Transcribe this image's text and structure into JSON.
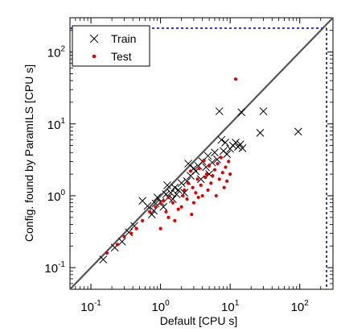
{
  "chart_data": {
    "type": "scatter",
    "xlabel": "Default [CPU s]",
    "ylabel": "Config. found by ParamILS [CPU s]",
    "x_scale": "log",
    "y_scale": "log",
    "xlim": [
      0.05,
      300
    ],
    "ylim": [
      0.05,
      300
    ],
    "x_ticks": [
      {
        "value": 0.1,
        "base": "10",
        "exp": "-1"
      },
      {
        "value": 1,
        "base": "10",
        "exp": "0"
      },
      {
        "value": 10,
        "base": "10",
        "exp": "1"
      },
      {
        "value": 100,
        "base": "10",
        "exp": "2"
      }
    ],
    "y_ticks": [
      {
        "value": 0.1,
        "base": "10",
        "exp": "-1"
      },
      {
        "value": 1,
        "base": "10",
        "exp": "0"
      },
      {
        "value": 10,
        "base": "10",
        "exp": "1"
      },
      {
        "value": 100,
        "base": "10",
        "exp": "2"
      }
    ],
    "grid": false,
    "legend_position": "top-left",
    "colors": {
      "train": "#000000",
      "test": "#e00000",
      "diagonal": "#555555",
      "cutoff": "#3333ff",
      "background": "#ffffff"
    },
    "reference_lines": [
      {
        "type": "diagonal",
        "style": "solid",
        "description": "y = x"
      },
      {
        "type": "cutoff",
        "style": "dotted",
        "x": 300,
        "y": 300
      }
    ],
    "series": [
      {
        "name": "Train",
        "marker": "x",
        "points": [
          [
            0.15,
            0.13
          ],
          [
            0.22,
            0.19
          ],
          [
            0.28,
            0.23
          ],
          [
            0.35,
            0.31
          ],
          [
            0.42,
            0.38
          ],
          [
            0.55,
            0.85
          ],
          [
            0.65,
            0.72
          ],
          [
            0.75,
            0.55
          ],
          [
            0.8,
            0.62
          ],
          [
            0.85,
            0.78
          ],
          [
            0.9,
            0.95
          ],
          [
            1.0,
            0.82
          ],
          [
            1.1,
            0.7
          ],
          [
            1.2,
            1.05
          ],
          [
            1.25,
            1.4
          ],
          [
            1.3,
            0.95
          ],
          [
            1.4,
            1.1
          ],
          [
            1.5,
            0.9
          ],
          [
            1.6,
            1.3
          ],
          [
            1.7,
            1.05
          ],
          [
            1.8,
            1.2
          ],
          [
            2.0,
            1.5
          ],
          [
            2.2,
            1.1
          ],
          [
            2.4,
            1.6
          ],
          [
            2.5,
            2.8
          ],
          [
            2.7,
            1.9
          ],
          [
            3.0,
            2.4
          ],
          [
            3.2,
            2.2
          ],
          [
            3.5,
            2.6
          ],
          [
            3.8,
            1.7
          ],
          [
            4.0,
            3.0
          ],
          [
            4.5,
            2.5
          ],
          [
            4.8,
            3.6
          ],
          [
            5.0,
            2.0
          ],
          [
            5.5,
            2.9
          ],
          [
            6.0,
            4.0
          ],
          [
            6.5,
            3.2
          ],
          [
            7.0,
            15.0
          ],
          [
            7.5,
            6.0
          ],
          [
            8.0,
            4.2
          ],
          [
            8.5,
            5.5
          ],
          [
            9.0,
            3.8
          ],
          [
            10.0,
            4.5
          ],
          [
            11.0,
            5.0
          ],
          [
            12.0,
            5.5
          ],
          [
            13.0,
            4.8
          ],
          [
            14.0,
            5.2
          ],
          [
            14.5,
            14.5
          ],
          [
            15.0,
            4.6
          ],
          [
            27.0,
            7.5
          ],
          [
            30.0,
            15.0
          ],
          [
            95.0,
            7.8
          ]
        ]
      },
      {
        "name": "Test",
        "marker": "dot",
        "points": [
          [
            0.17,
            0.16
          ],
          [
            0.24,
            0.21
          ],
          [
            0.3,
            0.27
          ],
          [
            0.38,
            0.3
          ],
          [
            0.45,
            0.35
          ],
          [
            0.55,
            0.45
          ],
          [
            0.85,
            0.7
          ],
          [
            1.0,
            0.78
          ],
          [
            1.1,
            0.85
          ],
          [
            1.2,
            0.6
          ],
          [
            1.3,
            0.95
          ],
          [
            1.5,
            0.8
          ],
          [
            1.6,
            0.45
          ],
          [
            1.8,
            0.65
          ],
          [
            2.0,
            0.7
          ],
          [
            2.1,
            1.0
          ],
          [
            2.2,
            1.2
          ],
          [
            2.4,
            0.9
          ],
          [
            2.5,
            1.5
          ],
          [
            2.7,
            2.2
          ],
          [
            2.9,
            1.3
          ],
          [
            3.0,
            0.8
          ],
          [
            3.2,
            1.1
          ],
          [
            3.4,
            1.7
          ],
          [
            3.6,
            2.4
          ],
          [
            3.8,
            1.4
          ],
          [
            4.0,
            1.0
          ],
          [
            4.2,
            3.1
          ],
          [
            4.4,
            1.8
          ],
          [
            4.6,
            2.0
          ],
          [
            4.8,
            1.2
          ],
          [
            5.0,
            2.6
          ],
          [
            5.3,
            1.5
          ],
          [
            5.6,
            1.9
          ],
          [
            6.0,
            2.3
          ],
          [
            6.3,
            1.0
          ],
          [
            6.6,
            2.8
          ],
          [
            7.0,
            1.7
          ],
          [
            7.4,
            3.4
          ],
          [
            7.8,
            2.1
          ],
          [
            8.2,
            1.3
          ],
          [
            8.6,
            2.5
          ],
          [
            9.0,
            1.6
          ],
          [
            9.5,
            3.0
          ],
          [
            10.0,
            2.0
          ],
          [
            12.0,
            42.0
          ],
          [
            1.0,
            0.35
          ],
          [
            1.3,
            0.5
          ],
          [
            0.7,
            0.6
          ],
          [
            2.8,
            0.55
          ],
          [
            3.5,
            0.95
          ]
        ]
      }
    ]
  }
}
